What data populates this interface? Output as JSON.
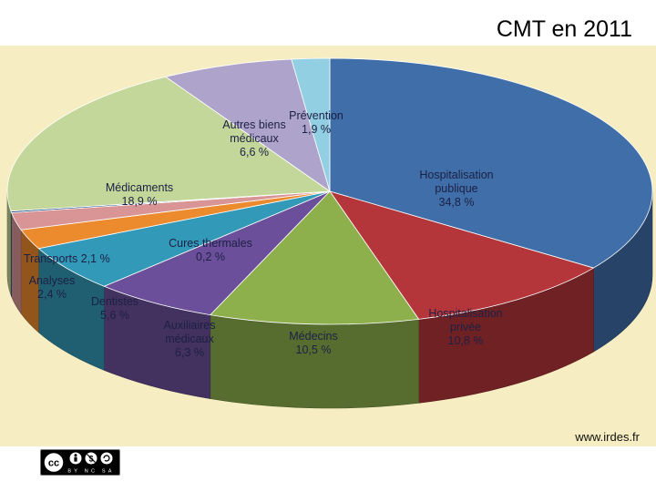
{
  "title": "CMT en 2011",
  "source": "www.irdes.fr",
  "license_badge": "BY NC SA",
  "chart_data": {
    "type": "pie",
    "title": "CMT en 2011",
    "unit": "%",
    "slices": [
      {
        "label": "Hospitalisation publique",
        "lines": [
          "Hospitalisation",
          "publique"
        ],
        "value_text": "34,8 %",
        "value": 34.8,
        "color": "#3f6ea8"
      },
      {
        "label": "Hospitalisation privée",
        "lines": [
          "Hospitalisation",
          "privée"
        ],
        "value_text": "10,8 %",
        "value": 10.8,
        "color": "#b5363a"
      },
      {
        "label": "Médecins",
        "lines": [
          "Médecins"
        ],
        "value_text": "10,5 %",
        "value": 10.5,
        "color": "#8db04d"
      },
      {
        "label": "Auxiliaires médicaux",
        "lines": [
          "Auxiliaires",
          "médicaux"
        ],
        "value_text": "6,3 %",
        "value": 6.3,
        "color": "#6c4f9a"
      },
      {
        "label": "Dentistes",
        "lines": [
          "Dentistes"
        ],
        "value_text": "5,6 %",
        "value": 5.6,
        "color": "#3399b8"
      },
      {
        "label": "Analyses",
        "lines": [
          "Analyses"
        ],
        "value_text": "2,4 %",
        "value": 2.4,
        "color": "#ec8a2e"
      },
      {
        "label": "Transports",
        "lines": [
          "Transports"
        ],
        "value_text": "2,1 %",
        "value": 2.1,
        "color": "#d99596"
      },
      {
        "label": "Cures thermales",
        "lines": [
          "Cures thermales"
        ],
        "value_text": "0,2 %",
        "value": 0.2,
        "color": "#1f4e86"
      },
      {
        "label": "Médicaments",
        "lines": [
          "Médicaments"
        ],
        "value_text": "18,9 %",
        "value": 18.9,
        "color": "#c3d79a"
      },
      {
        "label": "Autres biens médicaux",
        "lines": [
          "Autres biens",
          "médicaux"
        ],
        "value_text": "6,6 %",
        "value": 6.6,
        "color": "#aea3cb"
      },
      {
        "label": "Prévention",
        "lines": [
          "Prévention"
        ],
        "value_text": "1,9 %",
        "value": 1.9,
        "color": "#93cfe3"
      }
    ]
  }
}
